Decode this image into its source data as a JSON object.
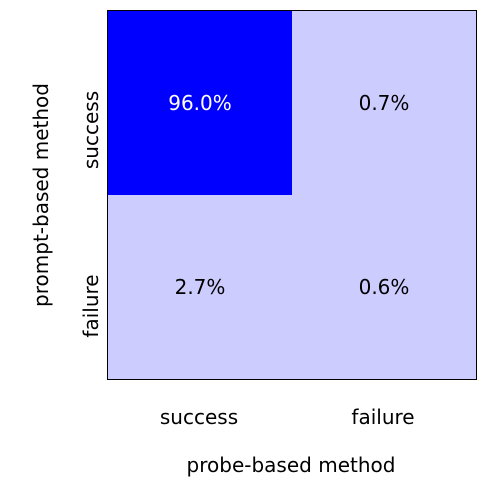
{
  "chart_data": {
    "type": "heatmap",
    "xlabel": "probe-based method",
    "ylabel": "prompt-based method",
    "x_categories": [
      "success",
      "failure"
    ],
    "y_categories": [
      "success",
      "failure"
    ],
    "cells": [
      {
        "row": 0,
        "col": 0,
        "value": 96.0,
        "label": "96.0%"
      },
      {
        "row": 0,
        "col": 1,
        "value": 0.7,
        "label": "0.7%"
      },
      {
        "row": 1,
        "col": 0,
        "value": 2.7,
        "label": "2.7%"
      },
      {
        "row": 1,
        "col": 1,
        "value": 0.6,
        "label": "0.6%"
      }
    ],
    "value_range": [
      0,
      96.0
    ],
    "colors": {
      "high": "#0000ff",
      "low": "#ccccff",
      "text_on_high": "#ffffff",
      "text_on_low": "#000000"
    },
    "grid": false,
    "legend": "none"
  }
}
